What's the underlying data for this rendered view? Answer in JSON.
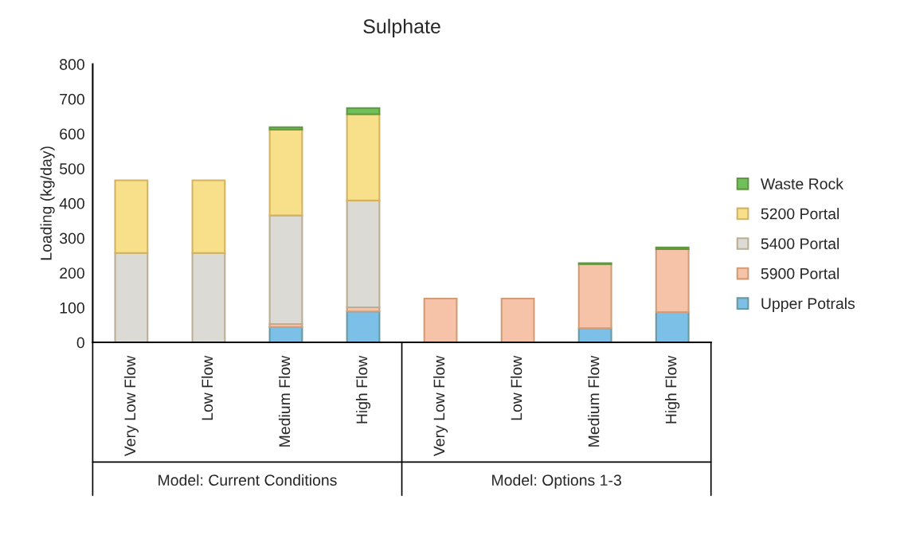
{
  "chart_data": {
    "type": "bar",
    "title": "Sulphate",
    "ylabel": "Loading (kg/day)",
    "stacked": true,
    "categories": [
      "Very Low Flow",
      "Low Flow",
      "Medium Flow",
      "High Flow",
      "Very Low Flow",
      "Low Flow",
      "Medium Flow",
      "High Flow"
    ],
    "annotations": [
      "Model: Current Conditions",
      "Model: Options 1-3"
    ],
    "series": [
      {
        "name": "Upper Potrals",
        "color": "#7cc0e8",
        "values": [
          null,
          null,
          44,
          89,
          null,
          null,
          41,
          87
        ]
      },
      {
        "name": "5900 Portal",
        "color": "#f6c3a8",
        "values": [
          0,
          0,
          9,
          12,
          126,
          126,
          184,
          181
        ]
      },
      {
        "name": "5400 Portal",
        "color": "#dcdad4",
        "values": [
          257,
          257,
          312,
          307,
          null,
          null,
          null,
          null
        ]
      },
      {
        "name": "5200 Portal",
        "color": "#f8e08a",
        "values": [
          209,
          209,
          247,
          248,
          null,
          null,
          null,
          null
        ]
      },
      {
        "name": "Waste Rock",
        "color": "#6fbf5a",
        "values": [
          null,
          null,
          7,
          18,
          null,
          null,
          3,
          5
        ]
      }
    ],
    "ylim": [
      0,
      800
    ],
    "yticks": [
      0,
      100,
      200,
      300,
      400,
      500,
      600,
      700,
      800
    ],
    "grid": false,
    "legend": "right"
  }
}
